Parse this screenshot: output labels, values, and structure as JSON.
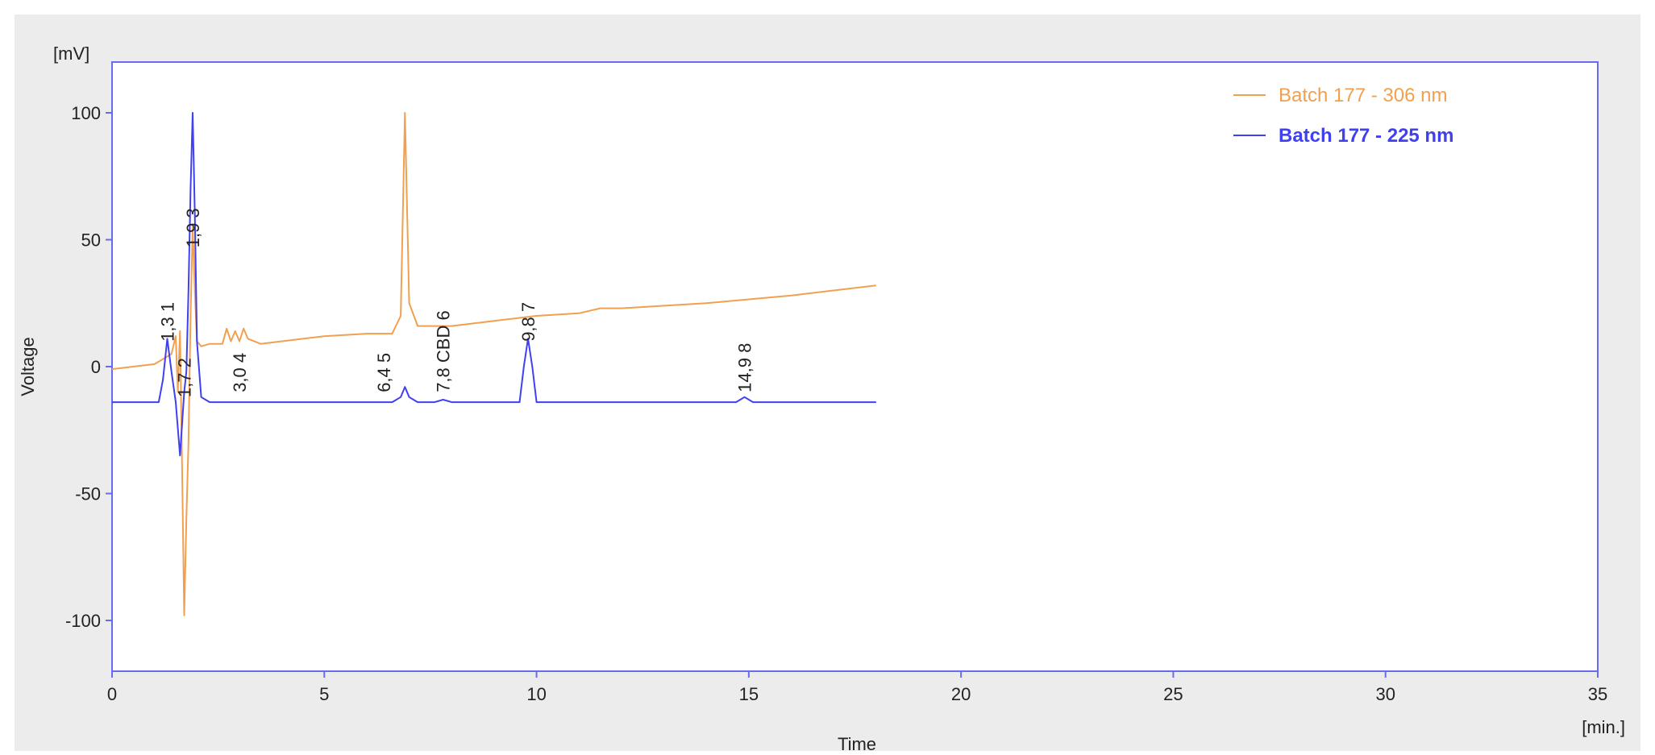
{
  "chart_data": {
    "type": "line",
    "title": "",
    "xlabel": "Time",
    "ylabel": "Voltage",
    "x_unit": "[min.]",
    "y_unit": "[mV]",
    "xlim": [
      0,
      35
    ],
    "ylim": [
      -120,
      120
    ],
    "x_ticks": [
      0,
      5,
      10,
      15,
      20,
      25,
      30,
      35
    ],
    "y_ticks": [
      -100,
      -50,
      0,
      50,
      100
    ],
    "grid": false,
    "legend_position": "top-right",
    "series": [
      {
        "name": "Batch 177 - 306 nm",
        "color": "#f0a050",
        "points": [
          [
            0,
            -1
          ],
          [
            1.0,
            1
          ],
          [
            1.2,
            3
          ],
          [
            1.4,
            5
          ],
          [
            1.5,
            12
          ],
          [
            1.55,
            -10
          ],
          [
            1.6,
            14
          ],
          [
            1.65,
            -40
          ],
          [
            1.7,
            -98
          ],
          [
            1.75,
            -60
          ],
          [
            1.8,
            -30
          ],
          [
            1.85,
            20
          ],
          [
            1.9,
            55
          ],
          [
            1.95,
            30
          ],
          [
            2.0,
            10
          ],
          [
            2.1,
            8
          ],
          [
            2.3,
            9
          ],
          [
            2.6,
            9
          ],
          [
            2.7,
            15
          ],
          [
            2.8,
            10
          ],
          [
            2.9,
            14
          ],
          [
            3.0,
            10
          ],
          [
            3.1,
            15
          ],
          [
            3.2,
            11
          ],
          [
            3.5,
            9
          ],
          [
            5.0,
            12
          ],
          [
            6.0,
            13
          ],
          [
            6.6,
            13
          ],
          [
            6.8,
            20
          ],
          [
            6.9,
            100
          ],
          [
            7.0,
            25
          ],
          [
            7.2,
            16
          ],
          [
            8.0,
            16
          ],
          [
            9.0,
            18
          ],
          [
            10.0,
            20
          ],
          [
            11.0,
            21
          ],
          [
            11.5,
            23
          ],
          [
            12.0,
            23
          ],
          [
            14.0,
            25
          ],
          [
            16.0,
            28
          ],
          [
            18.0,
            32
          ]
        ]
      },
      {
        "name": "Batch 177 - 225 nm",
        "color": "#4040f0",
        "points": [
          [
            0,
            -14
          ],
          [
            1.1,
            -14
          ],
          [
            1.2,
            -5
          ],
          [
            1.3,
            11
          ],
          [
            1.4,
            -2
          ],
          [
            1.5,
            -14
          ],
          [
            1.6,
            -35
          ],
          [
            1.7,
            -10
          ],
          [
            1.75,
            -2
          ],
          [
            1.8,
            30
          ],
          [
            1.85,
            70
          ],
          [
            1.9,
            100
          ],
          [
            1.95,
            60
          ],
          [
            2.0,
            10
          ],
          [
            2.1,
            -12
          ],
          [
            2.3,
            -14
          ],
          [
            6.6,
            -14
          ],
          [
            6.8,
            -12
          ],
          [
            6.9,
            -8
          ],
          [
            7.0,
            -12
          ],
          [
            7.2,
            -14
          ],
          [
            7.6,
            -14
          ],
          [
            7.8,
            -13
          ],
          [
            8.0,
            -14
          ],
          [
            9.6,
            -14
          ],
          [
            9.7,
            0
          ],
          [
            9.8,
            11
          ],
          [
            9.9,
            0
          ],
          [
            10.0,
            -14
          ],
          [
            14.7,
            -14
          ],
          [
            14.9,
            -12
          ],
          [
            15.1,
            -14
          ],
          [
            18.0,
            -14
          ]
        ]
      }
    ],
    "peak_labels": [
      {
        "x": 1.3,
        "y": 8,
        "text": "1,3 1"
      },
      {
        "x": 1.9,
        "y": 45,
        "text": "1,9 3"
      },
      {
        "x": 1.7,
        "y": -14,
        "text": "1,7 2"
      },
      {
        "x": 3.0,
        "y": -12,
        "text": "3,0 4"
      },
      {
        "x": 6.4,
        "y": -12,
        "text": "6,4 5"
      },
      {
        "x": 7.8,
        "y": -12,
        "text": "7,8 CBD 6"
      },
      {
        "x": 9.8,
        "y": 8,
        "text": "9,8 7"
      },
      {
        "x": 14.9,
        "y": -12,
        "text": "14,9 8"
      }
    ]
  }
}
